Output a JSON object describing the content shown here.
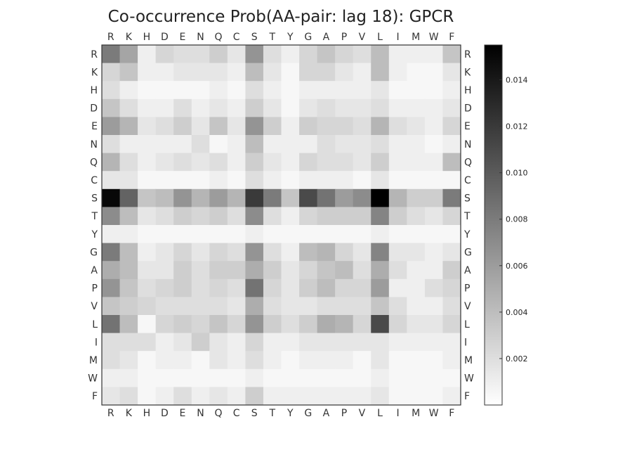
{
  "chart_data": {
    "type": "heatmap",
    "title": "Co-occurrence Prob(AA-pair: lag 18): GPCR",
    "x_labels": [
      "R",
      "K",
      "H",
      "D",
      "E",
      "N",
      "Q",
      "C",
      "S",
      "T",
      "Y",
      "G",
      "A",
      "P",
      "V",
      "L",
      "I",
      "M",
      "W",
      "F"
    ],
    "y_labels": [
      "R",
      "K",
      "H",
      "D",
      "E",
      "N",
      "Q",
      "C",
      "S",
      "T",
      "Y",
      "G",
      "A",
      "P",
      "V",
      "L",
      "I",
      "M",
      "W",
      "F"
    ],
    "colormap": "Greys",
    "vmin": 0.0,
    "vmax": 0.0155,
    "colorbar_ticks": [
      0.002,
      0.004,
      0.006,
      0.008,
      0.01,
      0.012,
      0.014
    ],
    "colorbar_tick_labels": [
      "0.002",
      "0.004",
      "0.006",
      "0.008",
      "0.010",
      "0.012",
      "0.014"
    ],
    "values": [
      [
        0.008,
        0.0055,
        0.001,
        0.0025,
        0.002,
        0.002,
        0.003,
        0.0015,
        0.0065,
        0.002,
        0.001,
        0.0025,
        0.0035,
        0.0025,
        0.002,
        0.004,
        0.001,
        0.001,
        0.001,
        0.0035
      ],
      [
        0.0025,
        0.0035,
        0.001,
        0.001,
        0.0015,
        0.0015,
        0.0015,
        0.001,
        0.004,
        0.0015,
        0.0005,
        0.0025,
        0.0025,
        0.0015,
        0.001,
        0.004,
        0.001,
        0.0005,
        0.0005,
        0.0015
      ],
      [
        0.002,
        0.001,
        0.0005,
        0.0005,
        0.0005,
        0.0005,
        0.001,
        0.0005,
        0.002,
        0.001,
        0.0005,
        0.001,
        0.001,
        0.001,
        0.001,
        0.0015,
        0.0005,
        0.0005,
        0.0005,
        0.001
      ],
      [
        0.0035,
        0.002,
        0.001,
        0.001,
        0.002,
        0.001,
        0.0015,
        0.001,
        0.003,
        0.0015,
        0.0005,
        0.0015,
        0.002,
        0.0015,
        0.0015,
        0.002,
        0.001,
        0.001,
        0.001,
        0.0015
      ],
      [
        0.006,
        0.0045,
        0.0015,
        0.002,
        0.003,
        0.0015,
        0.0035,
        0.0015,
        0.0065,
        0.003,
        0.001,
        0.003,
        0.0025,
        0.0025,
        0.002,
        0.0045,
        0.002,
        0.0015,
        0.001,
        0.0025
      ],
      [
        0.002,
        0.001,
        0.001,
        0.001,
        0.001,
        0.002,
        0.0005,
        0.001,
        0.004,
        0.001,
        0.001,
        0.001,
        0.002,
        0.0015,
        0.0015,
        0.002,
        0.001,
        0.001,
        0.0005,
        0.001
      ],
      [
        0.0045,
        0.002,
        0.001,
        0.0015,
        0.002,
        0.0015,
        0.002,
        0.001,
        0.003,
        0.0015,
        0.001,
        0.0025,
        0.002,
        0.002,
        0.0015,
        0.003,
        0.001,
        0.001,
        0.001,
        0.004
      ],
      [
        0.0015,
        0.0015,
        0.0005,
        0.0005,
        0.0005,
        0.0005,
        0.001,
        0.0005,
        0.002,
        0.001,
        0.0005,
        0.001,
        0.001,
        0.001,
        0.0005,
        0.0015,
        0.0005,
        0.0005,
        0.0005,
        0.0005
      ],
      [
        0.015,
        0.0095,
        0.0035,
        0.004,
        0.0065,
        0.0045,
        0.006,
        0.0045,
        0.012,
        0.008,
        0.0035,
        0.011,
        0.0085,
        0.006,
        0.007,
        0.0155,
        0.0045,
        0.003,
        0.003,
        0.008
      ],
      [
        0.007,
        0.004,
        0.0015,
        0.002,
        0.003,
        0.0025,
        0.003,
        0.002,
        0.007,
        0.002,
        0.001,
        0.0025,
        0.003,
        0.003,
        0.003,
        0.0075,
        0.003,
        0.002,
        0.0015,
        0.0025
      ],
      [
        0.001,
        0.001,
        0.0005,
        0.0005,
        0.0005,
        0.0005,
        0.0005,
        0.0005,
        0.001,
        0.0005,
        0.0005,
        0.0005,
        0.0005,
        0.0005,
        0.0005,
        0.001,
        0.0005,
        0.0005,
        0.0005,
        0.0005
      ],
      [
        0.008,
        0.004,
        0.001,
        0.0015,
        0.0025,
        0.0015,
        0.0025,
        0.002,
        0.0065,
        0.002,
        0.001,
        0.004,
        0.0045,
        0.0025,
        0.0015,
        0.0075,
        0.0015,
        0.0015,
        0.001,
        0.0015
      ],
      [
        0.005,
        0.004,
        0.0015,
        0.0015,
        0.003,
        0.002,
        0.003,
        0.003,
        0.005,
        0.003,
        0.0015,
        0.0025,
        0.0035,
        0.004,
        0.002,
        0.005,
        0.002,
        0.001,
        0.001,
        0.003
      ],
      [
        0.0065,
        0.0035,
        0.002,
        0.0025,
        0.003,
        0.002,
        0.0025,
        0.002,
        0.0085,
        0.0025,
        0.0015,
        0.003,
        0.004,
        0.0025,
        0.0025,
        0.006,
        0.001,
        0.001,
        0.002,
        0.0025
      ],
      [
        0.0035,
        0.003,
        0.0025,
        0.002,
        0.002,
        0.002,
        0.002,
        0.0015,
        0.005,
        0.002,
        0.0015,
        0.0015,
        0.002,
        0.002,
        0.002,
        0.0035,
        0.002,
        0.001,
        0.001,
        0.002
      ],
      [
        0.0085,
        0.004,
        0.0005,
        0.0025,
        0.003,
        0.0025,
        0.0035,
        0.0025,
        0.0065,
        0.003,
        0.002,
        0.003,
        0.005,
        0.0045,
        0.0025,
        0.011,
        0.0025,
        0.0015,
        0.0015,
        0.0025
      ],
      [
        0.002,
        0.002,
        0.002,
        0.001,
        0.0015,
        0.003,
        0.0015,
        0.001,
        0.0025,
        0.001,
        0.001,
        0.0015,
        0.0015,
        0.0015,
        0.0015,
        0.0015,
        0.001,
        0.001,
        0.001,
        0.001
      ],
      [
        0.002,
        0.0015,
        0.0005,
        0.001,
        0.001,
        0.0005,
        0.0015,
        0.001,
        0.002,
        0.001,
        0.0005,
        0.001,
        0.001,
        0.001,
        0.0005,
        0.0015,
        0.0005,
        0.0005,
        0.0005,
        0.001
      ],
      [
        0.001,
        0.001,
        0.0005,
        0.0005,
        0.0005,
        0.0005,
        0.0005,
        0.0005,
        0.001,
        0.0005,
        0.0005,
        0.0005,
        0.0005,
        0.0005,
        0.0005,
        0.001,
        0.0005,
        0.0005,
        0.0005,
        0.0005
      ],
      [
        0.0015,
        0.002,
        0.0005,
        0.001,
        0.002,
        0.001,
        0.0015,
        0.001,
        0.003,
        0.001,
        0.001,
        0.001,
        0.001,
        0.001,
        0.001,
        0.0015,
        0.0005,
        0.0005,
        0.0005,
        0.001
      ]
    ]
  }
}
